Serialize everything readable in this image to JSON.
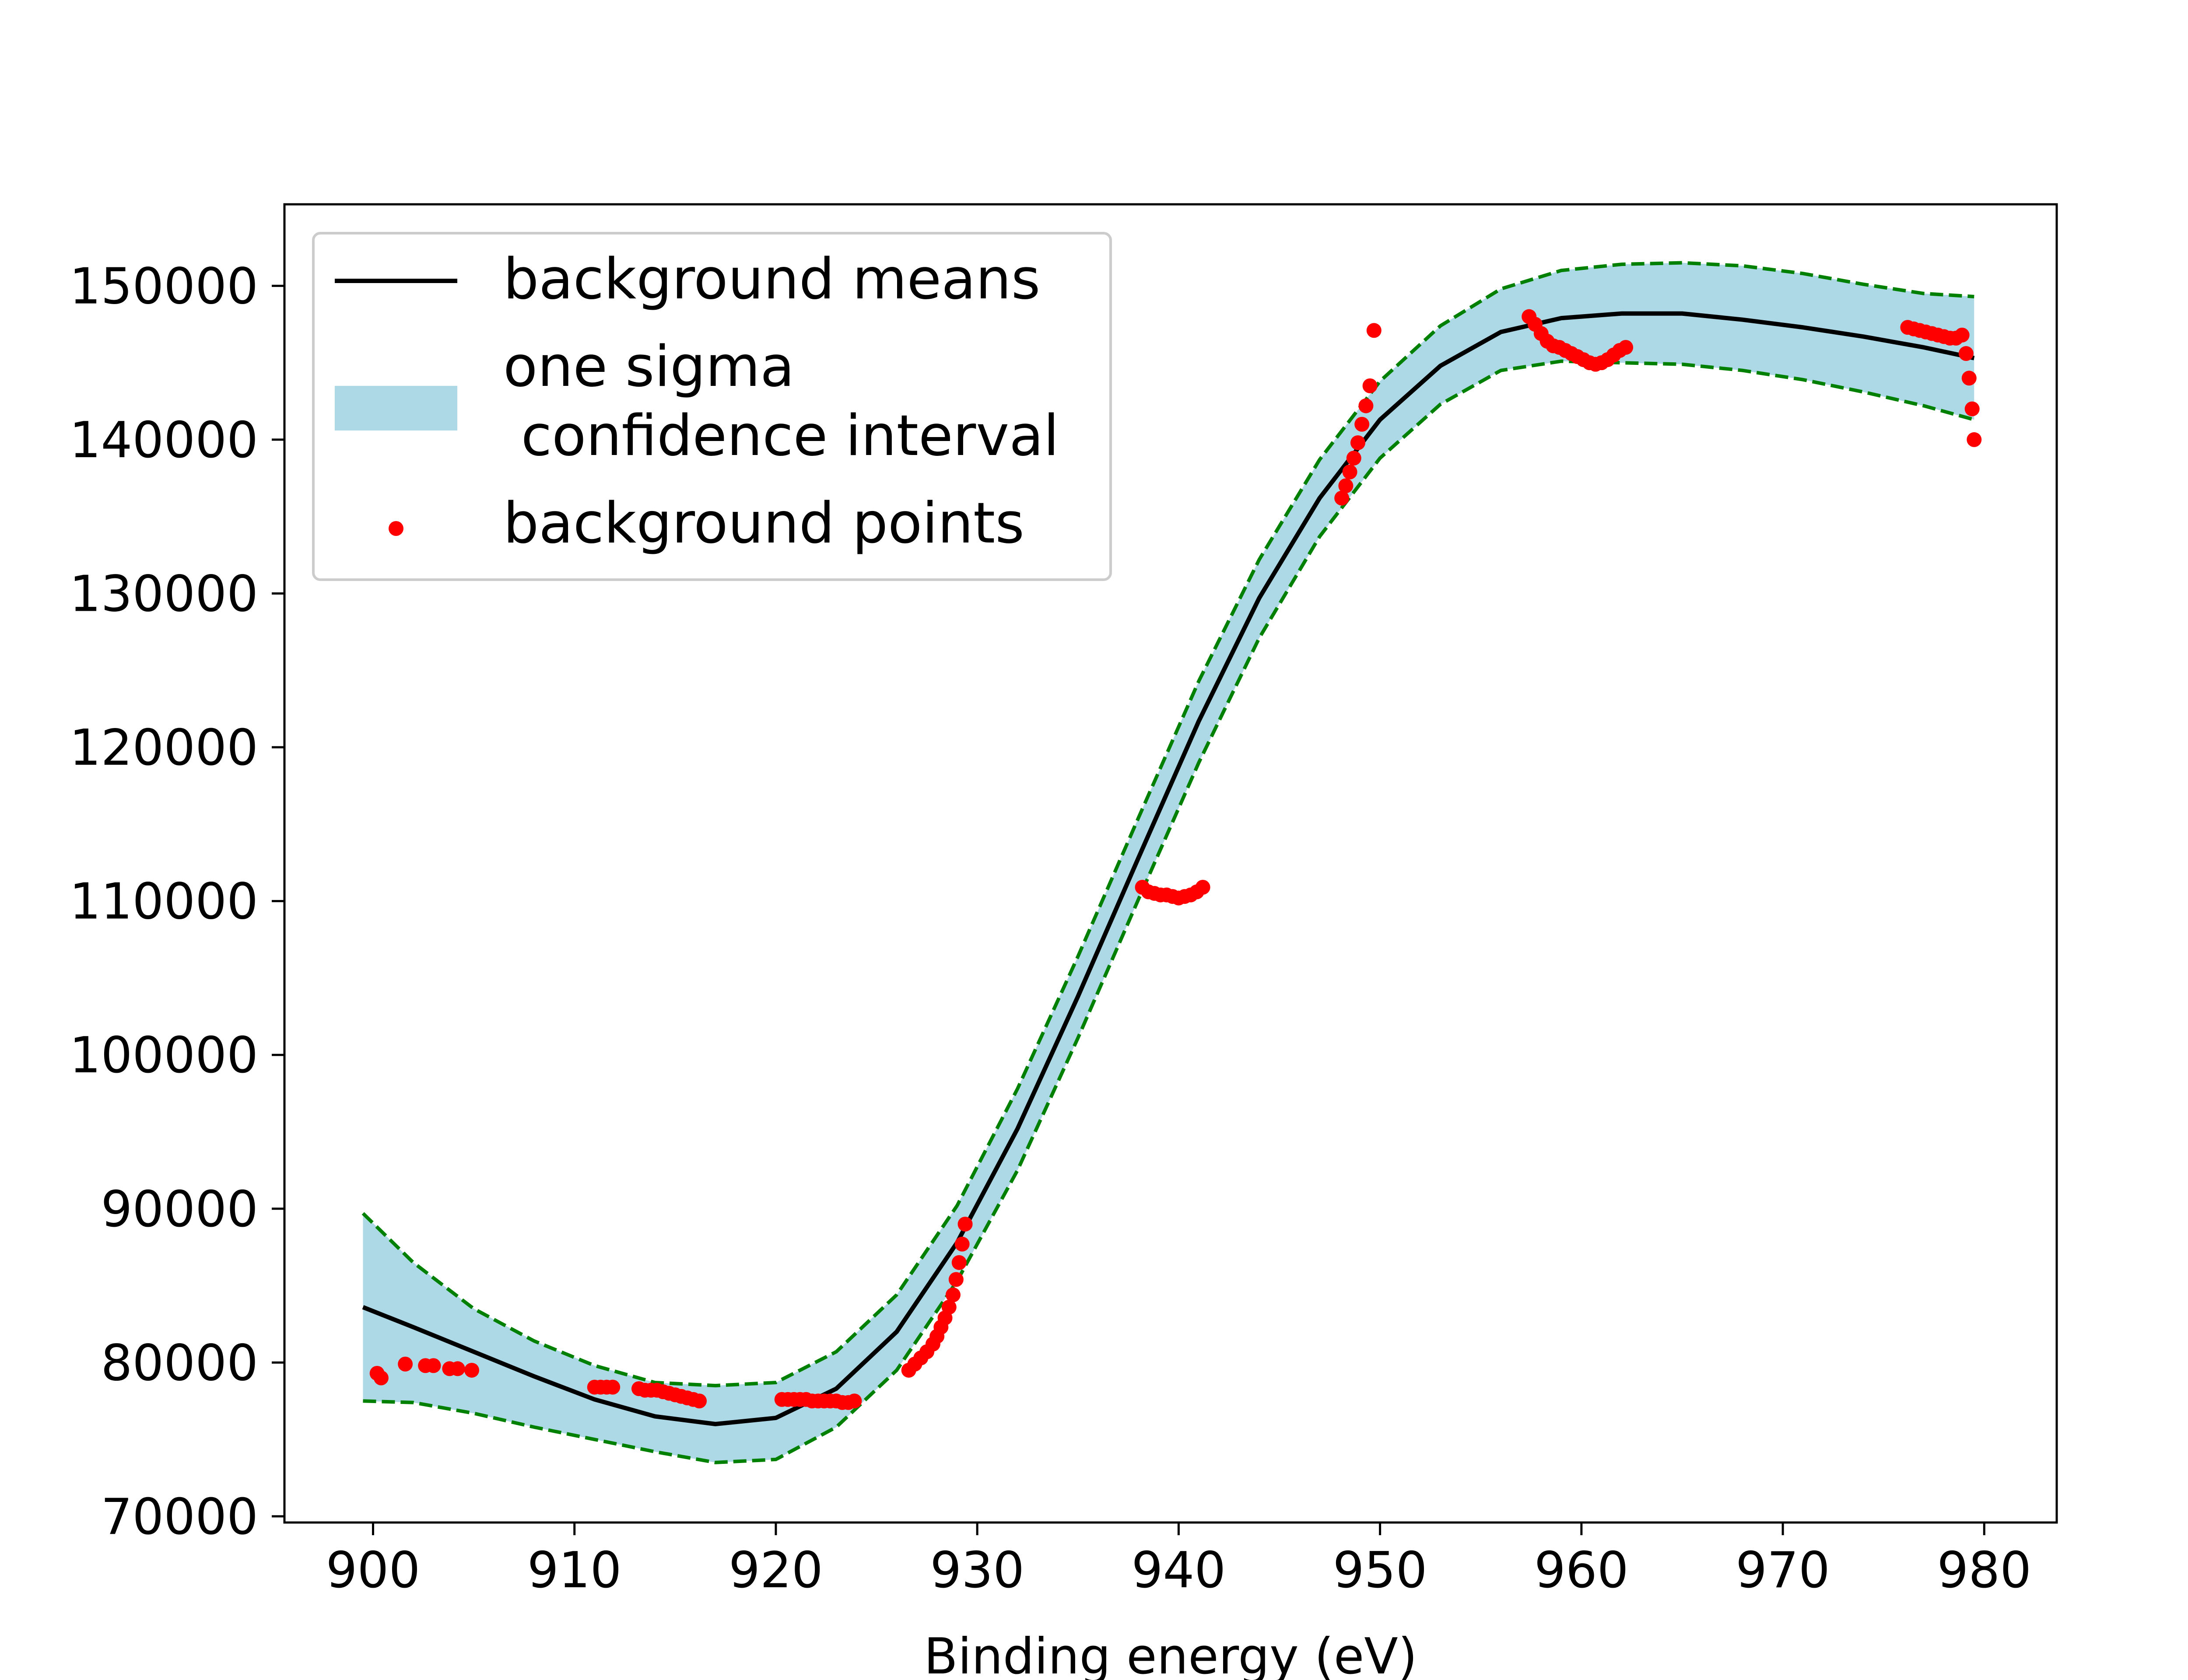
{
  "chart_data": {
    "type": "line",
    "title": "",
    "xlabel": "Binding energy (eV)",
    "ylabel": "",
    "xlim": [
      895.6,
      983.6
    ],
    "ylim": [
      69600,
      155300
    ],
    "xticks": [
      900,
      910,
      920,
      930,
      940,
      950,
      960,
      970,
      980
    ],
    "yticks": [
      70000,
      80000,
      90000,
      100000,
      110000,
      120000,
      130000,
      140000,
      150000
    ],
    "grid": false,
    "legend": {
      "position": "upper-left",
      "entries": [
        {
          "label": "background means",
          "kind": "line",
          "color": "#000000"
        },
        {
          "label": "one sigma\n confidence interval",
          "kind": "patch",
          "color": "#add8e6"
        },
        {
          "label": "background points",
          "kind": "marker",
          "color": "#ff0000"
        }
      ]
    },
    "mean_line": {
      "name": "background means",
      "color": "#000000",
      "x": [
        899.5,
        902,
        905,
        908,
        911,
        914,
        917,
        920,
        923,
        926,
        929,
        932,
        935,
        938,
        941,
        944,
        947,
        950,
        953,
        956,
        959,
        962,
        965,
        968,
        971,
        974,
        977,
        979.5
      ],
      "y": [
        83600,
        82300,
        80700,
        79100,
        77600,
        76500,
        76000,
        76400,
        78300,
        82000,
        87800,
        95200,
        103800,
        112800,
        121700,
        129700,
        136200,
        141300,
        144800,
        147000,
        147900,
        148200,
        148200,
        147800,
        147300,
        146700,
        146000,
        145300
      ]
    },
    "confidence_band": {
      "name": "one sigma\n confidence interval",
      "color": "#add8e6",
      "edge_color": "#008000",
      "x": [
        899.5,
        902,
        905,
        908,
        911,
        914,
        917,
        920,
        923,
        926,
        929,
        932,
        935,
        938,
        941,
        944,
        947,
        950,
        953,
        956,
        959,
        962,
        965,
        968,
        971,
        974,
        977,
        979.5
      ],
      "upper": [
        89700,
        86500,
        83500,
        81400,
        79800,
        78700,
        78500,
        78700,
        80700,
        84400,
        90200,
        97800,
        106400,
        115400,
        124300,
        132200,
        138700,
        143800,
        147400,
        149800,
        151000,
        151400,
        151500,
        151300,
        150800,
        150100,
        149500,
        149300
      ],
      "lower": [
        77500,
        77400,
        76700,
        75800,
        75000,
        74200,
        73500,
        73700,
        75800,
        79500,
        85300,
        92500,
        101100,
        110100,
        119000,
        127100,
        133700,
        138800,
        142300,
        144500,
        145100,
        145000,
        144900,
        144500,
        143900,
        143100,
        142200,
        141300
      ]
    },
    "points": {
      "name": "background points",
      "color": "#ff0000",
      "x": [
        900.2,
        900.4,
        901.6,
        902.6,
        903,
        903.8,
        904.2,
        904.9,
        911,
        911.3,
        911.6,
        911.9,
        913.2,
        913.5,
        913.8,
        914.1,
        914.4,
        914.7,
        915,
        915.3,
        915.6,
        915.9,
        916.2,
        920.3,
        920.6,
        920.9,
        921.2,
        921.5,
        921.8,
        922.1,
        922.4,
        922.7,
        923,
        923.3,
        923.6,
        923.9,
        926.6,
        926.9,
        927.2,
        927.5,
        927.8,
        928,
        928.2,
        928.4,
        928.6,
        928.8,
        928.95,
        929.1,
        929.25,
        929.4,
        938.2,
        938.5,
        938.8,
        939.1,
        939.4,
        939.7,
        940,
        940.3,
        940.6,
        940.9,
        941.2,
        948.1,
        948.3,
        948.5,
        948.7,
        948.9,
        949.1,
        949.3,
        949.5,
        949.7,
        957.4,
        957.7,
        958,
        958.3,
        958.6,
        958.9,
        959.2,
        959.5,
        959.8,
        960.1,
        960.4,
        960.7,
        961,
        961.3,
        961.6,
        961.9,
        962.2,
        976.2,
        976.5,
        976.8,
        977.1,
        977.4,
        977.7,
        978,
        978.3,
        978.6,
        978.9,
        979.1,
        979.25,
        979.4,
        979.5
      ],
      "y": [
        79300,
        79000,
        79900,
        79800,
        79800,
        79600,
        79600,
        79500,
        78400,
        78400,
        78400,
        78400,
        78300,
        78200,
        78200,
        78200,
        78100,
        78000,
        77900,
        77800,
        77700,
        77600,
        77500,
        77600,
        77600,
        77600,
        77600,
        77600,
        77500,
        77500,
        77500,
        77500,
        77500,
        77400,
        77400,
        77500,
        79500,
        79900,
        80300,
        80700,
        81200,
        81700,
        82300,
        82900,
        83600,
        84400,
        85400,
        86500,
        87700,
        89000,
        110900,
        110600,
        110500,
        110400,
        110400,
        110300,
        110200,
        110300,
        110400,
        110600,
        110900,
        136200,
        137000,
        137900,
        138800,
        139800,
        141000,
        142200,
        143500,
        147100,
        148000,
        147500,
        146900,
        146400,
        146100,
        146000,
        145800,
        145600,
        145400,
        145200,
        145000,
        144900,
        145000,
        145200,
        145500,
        145800,
        146000,
        147300,
        147200,
        147100,
        147000,
        146900,
        146800,
        146700,
        146600,
        146600,
        146800,
        145600,
        144000,
        142000,
        140000
      ]
    }
  }
}
